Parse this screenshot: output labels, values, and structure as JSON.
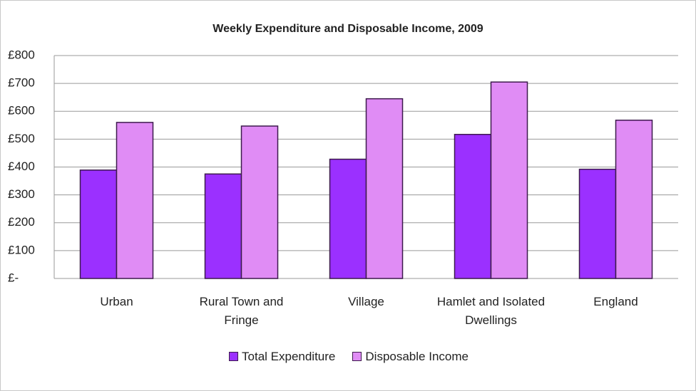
{
  "chart_data": {
    "type": "bar",
    "title": "Weekly Expenditure and Disposable Income, 2009",
    "categories": [
      "Urban",
      "Rural Town and Fringe",
      "Village",
      "Hamlet and Isolated Dwellings",
      "England"
    ],
    "series": [
      {
        "name": "Total Expenditure",
        "color": "#9b30ff",
        "values": [
          389,
          375,
          428,
          517,
          392
        ]
      },
      {
        "name": "Disposable Income",
        "color": "#e08cf5",
        "values": [
          560,
          547,
          645,
          705,
          568
        ]
      }
    ],
    "ylim": [
      0,
      800
    ],
    "yticks": [
      {
        "value": 0,
        "label": "£-"
      },
      {
        "value": 100,
        "label": "£100"
      },
      {
        "value": 200,
        "label": "£200"
      },
      {
        "value": 300,
        "label": "£300"
      },
      {
        "value": 400,
        "label": "£400"
      },
      {
        "value": 500,
        "label": "£500"
      },
      {
        "value": 600,
        "label": "£600"
      },
      {
        "value": 700,
        "label": "£700"
      },
      {
        "value": 800,
        "label": "£800"
      }
    ],
    "grid": true,
    "legend": "bottom"
  }
}
